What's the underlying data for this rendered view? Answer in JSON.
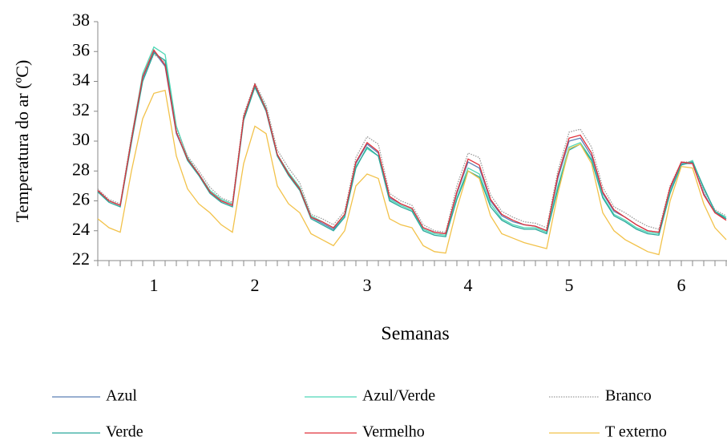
{
  "chart_data": {
    "type": "line",
    "y_label": "Temperatura do ar (ºC)",
    "x_label": "Semanas",
    "categories": [
      null,
      null,
      null,
      null,
      null,
      "1",
      null,
      null,
      null,
      null,
      null,
      null,
      null,
      null,
      "2",
      null,
      null,
      null,
      null,
      null,
      null,
      null,
      null,
      null,
      "3",
      null,
      null,
      null,
      null,
      null,
      null,
      null,
      null,
      "4",
      null,
      null,
      null,
      null,
      null,
      null,
      null,
      null,
      "5",
      null,
      null,
      null,
      null,
      null,
      null,
      null,
      null,
      null,
      "6",
      null,
      null,
      null,
      null
    ],
    "ylim": [
      22,
      38
    ],
    "yticks": [
      22,
      24,
      26,
      28,
      30,
      32,
      34,
      36,
      38
    ],
    "series": [
      {
        "name": "Azul",
        "color": "#5b7fb5",
        "style": "solid",
        "values": [
          26.7,
          26.0,
          25.7,
          30.0,
          34.2,
          36.0,
          35.0,
          30.5,
          28.8,
          27.8,
          26.6,
          26.0,
          25.7,
          31.5,
          33.7,
          32.0,
          29.0,
          27.8,
          26.8,
          24.9,
          24.5,
          24.1,
          25.0,
          28.5,
          29.8,
          29.2,
          26.2,
          25.8,
          25.5,
          24.2,
          23.9,
          23.8,
          26.5,
          28.6,
          28.2,
          26.0,
          25.0,
          24.6,
          24.4,
          24.3,
          24.0,
          27.5,
          30.0,
          30.2,
          29.0,
          26.5,
          25.3,
          24.9,
          24.4,
          24.0,
          23.9,
          26.8,
          28.5,
          28.5,
          26.5,
          25.2,
          24.8
        ]
      },
      {
        "name": "Azul/Verde",
        "color": "#4fd8b6",
        "style": "solid",
        "values": [
          26.6,
          26.0,
          25.7,
          30.2,
          34.5,
          36.3,
          35.8,
          31.0,
          28.9,
          27.8,
          26.7,
          26.1,
          25.8,
          31.6,
          33.8,
          32.2,
          29.1,
          27.9,
          26.9,
          25.0,
          24.6,
          24.2,
          25.0,
          28.3,
          29.5,
          29.0,
          26.1,
          25.7,
          25.4,
          24.1,
          23.8,
          23.7,
          26.2,
          28.2,
          27.8,
          25.8,
          24.8,
          24.4,
          24.2,
          24.2,
          23.9,
          27.0,
          29.6,
          29.9,
          28.8,
          26.3,
          25.1,
          24.7,
          24.2,
          23.9,
          23.8,
          26.6,
          28.4,
          28.7,
          26.8,
          25.3,
          24.9
        ]
      },
      {
        "name": "Branco",
        "color": "#9a9a9a",
        "style": "dotted",
        "values": [
          26.8,
          26.1,
          25.8,
          30.3,
          34.3,
          35.8,
          35.3,
          30.8,
          29.0,
          28.0,
          26.9,
          26.2,
          25.9,
          31.8,
          33.9,
          32.4,
          29.4,
          28.2,
          27.2,
          25.1,
          24.8,
          24.4,
          25.3,
          28.9,
          30.3,
          29.8,
          26.5,
          26.0,
          25.7,
          24.4,
          24.0,
          23.9,
          27.0,
          29.2,
          28.9,
          26.4,
          25.3,
          24.9,
          24.6,
          24.5,
          24.2,
          28.0,
          30.6,
          30.8,
          29.6,
          26.9,
          25.6,
          25.2,
          24.7,
          24.3,
          24.1,
          27.0,
          28.6,
          28.6,
          26.7,
          25.4,
          25.0
        ]
      },
      {
        "name": "Verde",
        "color": "#2aa89c",
        "style": "solid",
        "values": [
          26.6,
          25.9,
          25.6,
          29.9,
          34.0,
          35.9,
          35.4,
          30.6,
          28.7,
          27.7,
          26.5,
          25.9,
          25.6,
          31.4,
          33.6,
          32.0,
          29.0,
          27.7,
          26.7,
          24.8,
          24.4,
          24.0,
          24.9,
          28.2,
          29.6,
          29.0,
          26.0,
          25.6,
          25.3,
          24.0,
          23.7,
          23.6,
          26.1,
          28.0,
          27.6,
          25.6,
          24.7,
          24.3,
          24.1,
          24.1,
          23.8,
          26.8,
          29.4,
          29.8,
          28.7,
          26.2,
          25.0,
          24.6,
          24.1,
          23.8,
          23.7,
          26.5,
          28.4,
          28.6,
          26.9,
          25.3,
          24.8
        ]
      },
      {
        "name": "Vermelho",
        "color": "#e0303a",
        "style": "solid",
        "values": [
          26.7,
          26.0,
          25.7,
          30.1,
          34.3,
          36.1,
          35.1,
          30.6,
          28.8,
          27.8,
          26.6,
          26.0,
          25.7,
          31.6,
          33.8,
          32.1,
          29.1,
          27.8,
          26.8,
          24.9,
          24.6,
          24.2,
          25.1,
          28.6,
          29.9,
          29.3,
          26.3,
          25.8,
          25.5,
          24.2,
          23.9,
          23.8,
          26.6,
          28.8,
          28.4,
          26.1,
          25.1,
          24.7,
          24.4,
          24.3,
          24.0,
          27.7,
          30.2,
          30.4,
          29.2,
          26.6,
          25.4,
          24.9,
          24.4,
          24.0,
          23.9,
          26.9,
          28.6,
          28.5,
          26.4,
          25.2,
          24.7
        ]
      },
      {
        "name": "T externo",
        "color": "#f2c24a",
        "style": "solid",
        "values": [
          24.8,
          24.2,
          23.9,
          28.0,
          31.5,
          33.2,
          33.4,
          29.0,
          26.8,
          25.8,
          25.2,
          24.4,
          23.9,
          28.5,
          31.0,
          30.5,
          27.0,
          25.8,
          25.2,
          23.8,
          23.4,
          23.0,
          24.0,
          27.0,
          27.8,
          27.5,
          24.8,
          24.4,
          24.2,
          23.0,
          22.6,
          22.5,
          25.5,
          28.0,
          27.5,
          25.0,
          23.8,
          23.5,
          23.2,
          23.0,
          22.8,
          26.5,
          29.5,
          29.8,
          28.5,
          25.2,
          24.0,
          23.4,
          23.0,
          22.6,
          22.4,
          26.0,
          28.3,
          28.2,
          25.8,
          24.2,
          23.4
        ]
      }
    ]
  }
}
